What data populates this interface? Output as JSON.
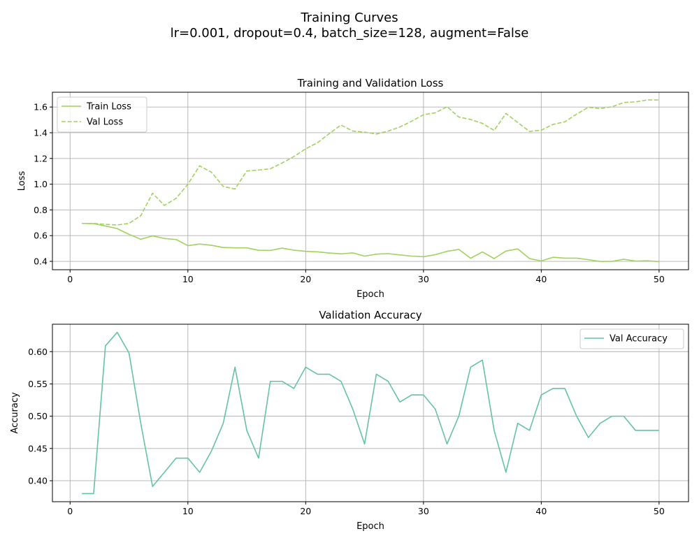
{
  "figure": {
    "suptitle_line1": "Training Curves",
    "suptitle_line2": "lr=0.001, dropout=0.4, batch_size=128, augment=False"
  },
  "chart_data": [
    {
      "type": "line",
      "title": "Training and Validation Loss",
      "xlabel": "Epoch",
      "ylabel": "Loss",
      "xlim": [
        -1.5,
        52.5
      ],
      "ylim": [
        0.335,
        1.715
      ],
      "xticks": [
        "0",
        "10",
        "20",
        "30",
        "40",
        "50"
      ],
      "yticks": [
        "0.4",
        "0.6",
        "0.8",
        "1.0",
        "1.2",
        "1.4",
        "1.6"
      ],
      "grid": true,
      "legend_position": "upper-left",
      "x": [
        1,
        2,
        3,
        4,
        5,
        6,
        7,
        8,
        9,
        10,
        11,
        12,
        13,
        14,
        15,
        16,
        17,
        18,
        19,
        20,
        21,
        22,
        23,
        24,
        25,
        26,
        27,
        28,
        29,
        30,
        31,
        32,
        33,
        34,
        35,
        36,
        37,
        38,
        39,
        40,
        41,
        42,
        43,
        44,
        45,
        46,
        47,
        48,
        49,
        50
      ],
      "series": [
        {
          "name": "Train Loss",
          "color": "#a1d25e",
          "dash": "solid",
          "values": [
            0.695,
            0.693,
            0.675,
            0.655,
            0.61,
            0.572,
            0.598,
            0.578,
            0.57,
            0.522,
            0.535,
            0.525,
            0.508,
            0.505,
            0.505,
            0.486,
            0.485,
            0.503,
            0.487,
            0.478,
            0.474,
            0.465,
            0.458,
            0.466,
            0.441,
            0.456,
            0.46,
            0.45,
            0.441,
            0.436,
            0.452,
            0.478,
            0.493,
            0.424,
            0.473,
            0.422,
            0.48,
            0.497,
            0.422,
            0.403,
            0.432,
            0.425,
            0.425,
            0.413,
            0.399,
            0.4,
            0.416,
            0.402,
            0.405,
            0.398
          ]
        },
        {
          "name": "Val Loss",
          "color": "#a1d25e",
          "dash": "dashed",
          "values": [
            0.695,
            0.695,
            0.688,
            0.683,
            0.695,
            0.755,
            0.93,
            0.835,
            0.89,
            1.0,
            1.143,
            1.093,
            0.982,
            0.963,
            1.103,
            1.11,
            1.12,
            1.165,
            1.215,
            1.275,
            1.322,
            1.393,
            1.46,
            1.413,
            1.405,
            1.39,
            1.413,
            1.445,
            1.49,
            1.54,
            1.555,
            1.602,
            1.522,
            1.503,
            1.473,
            1.418,
            1.55,
            1.48,
            1.41,
            1.42,
            1.465,
            1.485,
            1.545,
            1.598,
            1.588,
            1.602,
            1.635,
            1.64,
            1.655,
            1.655
          ]
        }
      ]
    },
    {
      "type": "line",
      "title": "Validation Accuracy",
      "xlabel": "Epoch",
      "ylabel": "Accuracy",
      "xlim": [
        -1.5,
        52.5
      ],
      "ylim": [
        0.3675,
        0.6425
      ],
      "xticks": [
        "0",
        "10",
        "20",
        "30",
        "40",
        "50"
      ],
      "yticks": [
        "0.40",
        "0.45",
        "0.50",
        "0.55",
        "0.60"
      ],
      "grid": true,
      "legend_position": "upper-right",
      "x": [
        1,
        2,
        3,
        4,
        5,
        6,
        7,
        8,
        9,
        10,
        11,
        12,
        13,
        14,
        15,
        16,
        17,
        18,
        19,
        20,
        21,
        22,
        23,
        24,
        25,
        26,
        27,
        28,
        29,
        30,
        31,
        32,
        33,
        34,
        35,
        36,
        37,
        38,
        39,
        40,
        41,
        42,
        43,
        44,
        45,
        46,
        47,
        48,
        49,
        50
      ],
      "series": [
        {
          "name": "Val Accuracy",
          "color": "#66c2a5",
          "dash": "solid",
          "values": [
            0.38,
            0.38,
            0.609,
            0.63,
            0.598,
            0.489,
            0.391,
            0.413,
            0.435,
            0.435,
            0.413,
            0.446,
            0.489,
            0.576,
            0.478,
            0.435,
            0.554,
            0.554,
            0.543,
            0.576,
            0.565,
            0.565,
            0.554,
            0.511,
            0.457,
            0.565,
            0.554,
            0.522,
            0.533,
            0.533,
            0.511,
            0.457,
            0.5,
            0.576,
            0.587,
            0.478,
            0.413,
            0.489,
            0.478,
            0.533,
            0.543,
            0.543,
            0.5,
            0.467,
            0.489,
            0.5,
            0.5,
            0.478,
            0.478,
            0.478
          ]
        }
      ]
    }
  ]
}
